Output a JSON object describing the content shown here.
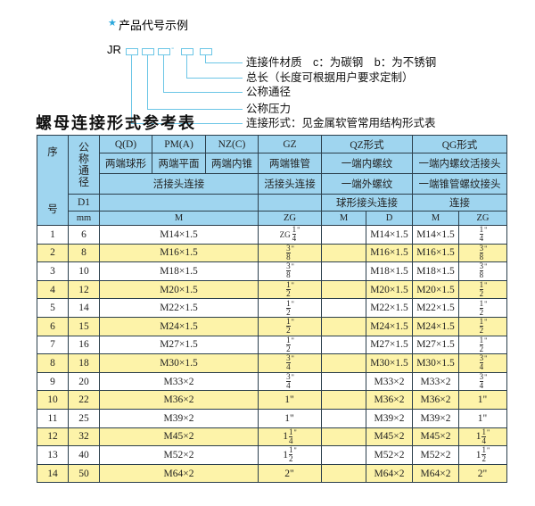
{
  "legend": {
    "star_icon": "star-icon",
    "heading": "产品代号示例",
    "code_prefix": "JR",
    "separator": "-",
    "labels": [
      "连接件材质　c：为碳钢　b：为不锈钢",
      "总长（长度可根据用户要求定制）",
      "公称通径",
      "公称压力",
      "连接形式：见金属软管常用结构形式表"
    ],
    "accent_color": "#6cc6e6"
  },
  "table_title": "螺母连接形式参考表",
  "header": {
    "seq_top": "序",
    "seq_bottom": "号",
    "dn": "公称通径",
    "types": [
      "Q(D)",
      "PM(A)",
      "NZ(C)",
      "GZ",
      "QZ形式",
      "QG形式"
    ],
    "row2": [
      "两端球形",
      "两端平面",
      "两端内锥",
      "两端锥管",
      "一端内螺纹",
      "一端内螺纹活接头"
    ],
    "row3": [
      "活接头连接",
      "活接头连接",
      "一端外螺纹",
      "一端锥管螺纹接头"
    ],
    "row4": [
      "D1",
      "球形接头连接",
      "连接"
    ],
    "row5": [
      "mm",
      "M",
      "ZG",
      "M",
      "D",
      "M",
      "ZG"
    ],
    "header_color": "#9fd5ef",
    "stripe_color": "#fdf3a9"
  },
  "rows": [
    {
      "no": "1",
      "dn": "6",
      "m": "M14×1.5",
      "zg": {
        "pre": "ZG",
        "w": "",
        "n": "1",
        "d": "4",
        "q": "\""
      },
      "qz_m": "",
      "qz_d": "M14×1.5",
      "qg_m": "M14×1.5",
      "qg_zg": {
        "w": "",
        "n": "1",
        "d": "4",
        "q": "\""
      }
    },
    {
      "no": "2",
      "dn": "8",
      "m": "M16×1.5",
      "zg": {
        "w": "",
        "n": "3",
        "d": "8",
        "q": "\""
      },
      "qz_m": "",
      "qz_d": "M16×1.5",
      "qg_m": "M16×1.5",
      "qg_zg": {
        "w": "",
        "n": "3",
        "d": "8",
        "q": "\""
      }
    },
    {
      "no": "3",
      "dn": "10",
      "m": "M18×1.5",
      "zg": {
        "w": "",
        "n": "3",
        "d": "8",
        "q": "\""
      },
      "qz_m": "",
      "qz_d": "M18×1.5",
      "qg_m": "M18×1.5",
      "qg_zg": {
        "w": "",
        "n": "3",
        "d": "8",
        "q": "\""
      }
    },
    {
      "no": "4",
      "dn": "12",
      "m": "M20×1.5",
      "zg": {
        "w": "",
        "n": "1",
        "d": "2",
        "q": "\""
      },
      "qz_m": "",
      "qz_d": "M20×1.5",
      "qg_m": "M20×1.5",
      "qg_zg": {
        "w": "",
        "n": "1",
        "d": "2",
        "q": "\""
      }
    },
    {
      "no": "5",
      "dn": "14",
      "m": "M22×1.5",
      "zg": {
        "w": "",
        "n": "1",
        "d": "2",
        "q": "\""
      },
      "qz_m": "",
      "qz_d": "M22×1.5",
      "qg_m": "M22×1.5",
      "qg_zg": {
        "w": "",
        "n": "1",
        "d": "2",
        "q": "\""
      }
    },
    {
      "no": "6",
      "dn": "15",
      "m": "M24×1.5",
      "zg": {
        "w": "",
        "n": "1",
        "d": "2",
        "q": "\""
      },
      "qz_m": "",
      "qz_d": "M24×1.5",
      "qg_m": "M24×1.5",
      "qg_zg": {
        "w": "",
        "n": "1",
        "d": "2",
        "q": "\""
      }
    },
    {
      "no": "7",
      "dn": "16",
      "m": "M27×1.5",
      "zg": {
        "w": "",
        "n": "1",
        "d": "2",
        "q": "\""
      },
      "qz_m": "",
      "qz_d": "M27×1.5",
      "qg_m": "M27×1.5",
      "qg_zg": {
        "w": "",
        "n": "1",
        "d": "2",
        "q": "\""
      }
    },
    {
      "no": "8",
      "dn": "18",
      "m": "M30×1.5",
      "zg": {
        "w": "",
        "n": "3",
        "d": "4",
        "q": "\""
      },
      "qz_m": "",
      "qz_d": "M30×1.5",
      "qg_m": "M30×1.5",
      "qg_zg": {
        "w": "",
        "n": "3",
        "d": "4",
        "q": "\""
      }
    },
    {
      "no": "9",
      "dn": "20",
      "m": "M33×2",
      "zg": {
        "w": "",
        "n": "3",
        "d": "4",
        "q": "\""
      },
      "qz_m": "",
      "qz_d": "M33×2",
      "qg_m": "M33×2",
      "qg_zg": {
        "w": "",
        "n": "3",
        "d": "4",
        "q": "\""
      }
    },
    {
      "no": "10",
      "dn": "22",
      "m": "M36×2",
      "zg": {
        "w": "1\"",
        "n": "",
        "d": "",
        "q": ""
      },
      "qz_m": "",
      "qz_d": "M36×2",
      "qg_m": "M36×2",
      "qg_zg": {
        "w": "1\"",
        "n": "",
        "d": "",
        "q": ""
      }
    },
    {
      "no": "11",
      "dn": "25",
      "m": "M39×2",
      "zg": {
        "w": "1\"",
        "n": "",
        "d": "",
        "q": ""
      },
      "qz_m": "",
      "qz_d": "M39×2",
      "qg_m": "M39×2",
      "qg_zg": {
        "w": "1\"",
        "n": "",
        "d": "",
        "q": ""
      }
    },
    {
      "no": "12",
      "dn": "32",
      "m": "M45×2",
      "zg": {
        "w": "1",
        "n": "1",
        "d": "4",
        "q": "\""
      },
      "qz_m": "",
      "qz_d": "M45×2",
      "qg_m": "M45×2",
      "qg_zg": {
        "w": "1",
        "n": "1",
        "d": "4",
        "q": "\""
      }
    },
    {
      "no": "13",
      "dn": "40",
      "m": "M52×2",
      "zg": {
        "w": "1",
        "n": "1",
        "d": "2",
        "q": "\""
      },
      "qz_m": "",
      "qz_d": "M52×2",
      "qg_m": "M52×2",
      "qg_zg": {
        "w": "1",
        "n": "1",
        "d": "2",
        "q": "\""
      }
    },
    {
      "no": "14",
      "dn": "50",
      "m": "M64×2",
      "zg": {
        "w": "2\"",
        "n": "",
        "d": "",
        "q": ""
      },
      "qz_m": "",
      "qz_d": "M64×2",
      "qg_m": "M64×2",
      "qg_zg": {
        "w": "2\"",
        "n": "",
        "d": "",
        "q": ""
      }
    }
  ]
}
